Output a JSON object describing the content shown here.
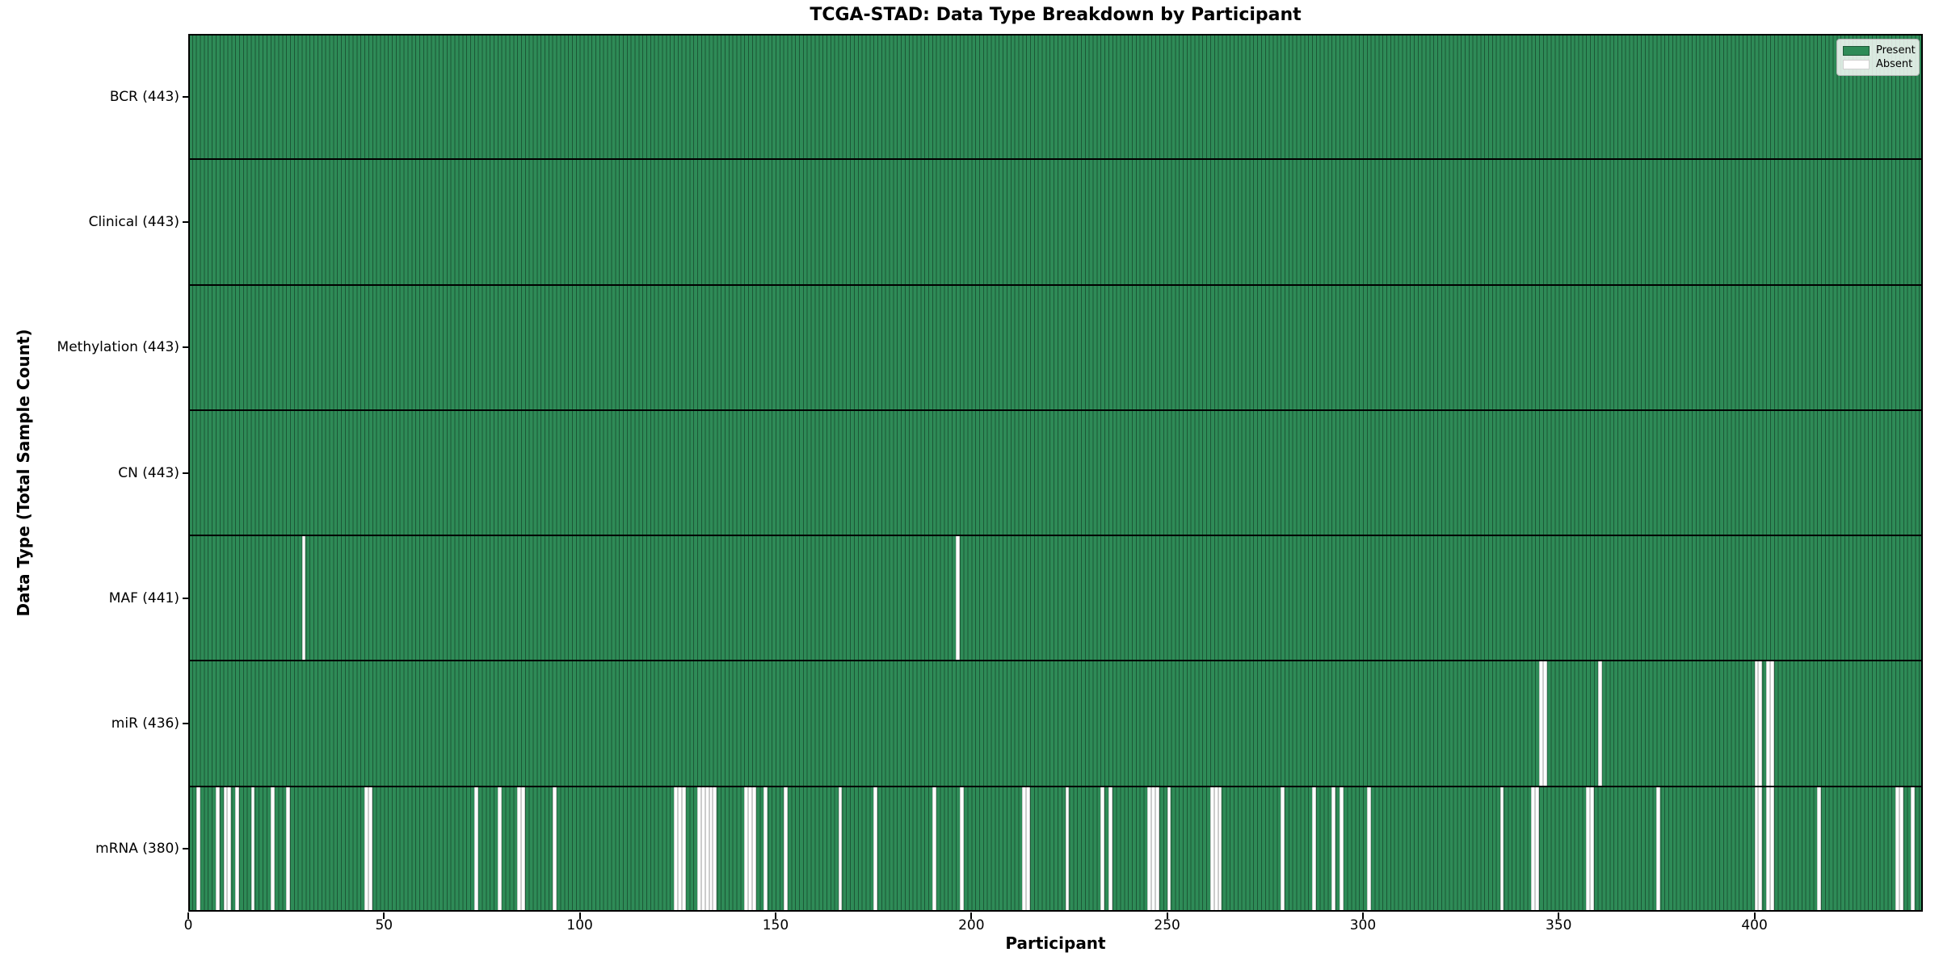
{
  "colors": {
    "present": "#2e8b57",
    "present_edge": "#1c5736",
    "absent": "#ffffff",
    "frame": "#000000",
    "legend_border": "#b3b3b3"
  },
  "chart_data": {
    "type": "heatmap",
    "title": "TCGA-STAD: Data Type Breakdown by Participant",
    "xlabel": "Participant",
    "ylabel": "Data Type (Total Sample Count)",
    "legend": {
      "present": "Present",
      "absent": "Absent"
    },
    "legend_position": "upper right",
    "grid": false,
    "n_participants": 443,
    "x_range": [
      0,
      443
    ],
    "x_ticks": [
      0,
      50,
      100,
      150,
      200,
      250,
      300,
      350,
      400
    ],
    "rows": [
      {
        "data_type": "BCR",
        "label": "BCR (443)",
        "present_count": 443,
        "absent_count": 0,
        "absent_participants": []
      },
      {
        "data_type": "Clinical",
        "label": "Clinical (443)",
        "present_count": 443,
        "absent_count": 0,
        "absent_participants": []
      },
      {
        "data_type": "Methylation",
        "label": "Methylation (443)",
        "present_count": 443,
        "absent_count": 0,
        "absent_participants": []
      },
      {
        "data_type": "CN",
        "label": "CN (443)",
        "present_count": 443,
        "absent_count": 0,
        "absent_participants": []
      },
      {
        "data_type": "MAF",
        "label": "MAF (441)",
        "present_count": 441,
        "absent_count": 2,
        "absent_participants": [
          29,
          196
        ]
      },
      {
        "data_type": "miR",
        "label": "miR (436)",
        "present_count": 436,
        "absent_count": 7,
        "absent_participants": [
          345,
          346,
          360,
          400,
          401,
          403,
          404
        ]
      },
      {
        "data_type": "mRNA",
        "label": "mRNA (380)",
        "present_count": 380,
        "absent_count": 63,
        "absent_participants": [
          2,
          7,
          9,
          10,
          12,
          16,
          21,
          25,
          45,
          46,
          73,
          79,
          84,
          85,
          93,
          124,
          125,
          126,
          130,
          131,
          132,
          133,
          134,
          142,
          143,
          144,
          147,
          152,
          166,
          175,
          190,
          197,
          213,
          214,
          224,
          233,
          235,
          245,
          246,
          247,
          250,
          261,
          262,
          263,
          279,
          287,
          292,
          294,
          301,
          335,
          343,
          344,
          357,
          358,
          375,
          400,
          401,
          403,
          404,
          416,
          436,
          437,
          440
        ]
      }
    ]
  }
}
